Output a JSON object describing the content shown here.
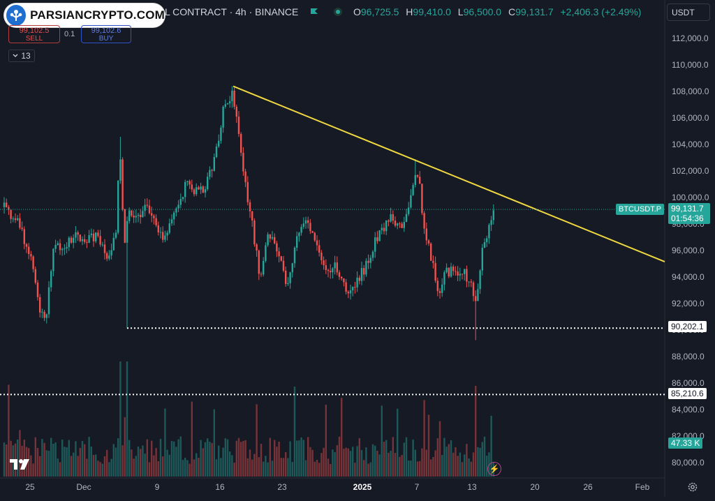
{
  "watermark": {
    "brand": "PARSIANCRYPTO.COM"
  },
  "header": {
    "title": "L CONTRACT · 4h · BINANCE",
    "ohlc": {
      "o_key": "O",
      "o": "96,725.5",
      "h_key": "H",
      "h": "99,410.0",
      "l_key": "L",
      "l": "96,500.0",
      "c_key": "C",
      "c": "99,131.7",
      "change": "+2,406.3 (+2.49%)"
    }
  },
  "trade": {
    "sell_price": "99,102.5",
    "sell_label": "SELL",
    "qty": "0.1",
    "buy_price": "99,102.6",
    "buy_label": "BUY",
    "collapse_count": "13"
  },
  "currency": {
    "label": "USDT"
  },
  "price_axis": {
    "labels": [
      "112,000.0",
      "110,000.0",
      "108,000.0",
      "106,000.0",
      "104,000.0",
      "102,000.0",
      "100,000.0",
      "98,000.0",
      "96,000.0",
      "94,000.0",
      "92,000.0",
      "90,000.0",
      "88,000.0",
      "86,000.0",
      "84,000.0",
      "82,000.0",
      "80,000.0"
    ]
  },
  "time_axis": {
    "labels": [
      {
        "text": "25",
        "bold": false
      },
      {
        "text": "Dec",
        "bold": false
      },
      {
        "text": "9",
        "bold": false
      },
      {
        "text": "16",
        "bold": false
      },
      {
        "text": "23",
        "bold": false
      },
      {
        "text": "2025",
        "bold": true
      },
      {
        "text": "7",
        "bold": false
      },
      {
        "text": "13",
        "bold": false
      },
      {
        "text": "20",
        "bold": false
      },
      {
        "text": "26",
        "bold": false
      },
      {
        "text": "Feb",
        "bold": false
      }
    ]
  },
  "tags": {
    "symbol": "BTCUSDT.P",
    "last_price": "99,131.7",
    "countdown": "01:54:36",
    "level_1": "90,202.1",
    "level_2": "85,210.6",
    "volume": "47.33 K"
  },
  "colors": {
    "background": "#161a25",
    "up": "#26a69a",
    "down": "#ef5350",
    "trendline": "#f0d840",
    "level_line": "#ffffff"
  },
  "chart_data": {
    "type": "candlestick",
    "symbol": "BTCUSDT.P",
    "interval": "4h",
    "ylim": [
      79000,
      113500
    ],
    "trendline": {
      "from": [
        108400
      ],
      "to": [
        95200
      ]
    },
    "horizontal_levels": [
      90202.1,
      85210.6
    ],
    "key_points": [
      {
        "label": "start",
        "price": 99300
      },
      {
        "label": "late Nov low",
        "price": 91000
      },
      {
        "label": "Dec 5 wick low",
        "price": 90202.1
      },
      {
        "label": "Dec 17 high",
        "price": 108400
      },
      {
        "label": "Dec 20 low",
        "price": 92300
      },
      {
        "label": "Dec 30 low",
        "price": 91500
      },
      {
        "label": "Jan 6 high",
        "price": 102700
      },
      {
        "label": "Jan 13 low",
        "price": 89300
      },
      {
        "label": "last",
        "price": 99131.7
      }
    ]
  }
}
